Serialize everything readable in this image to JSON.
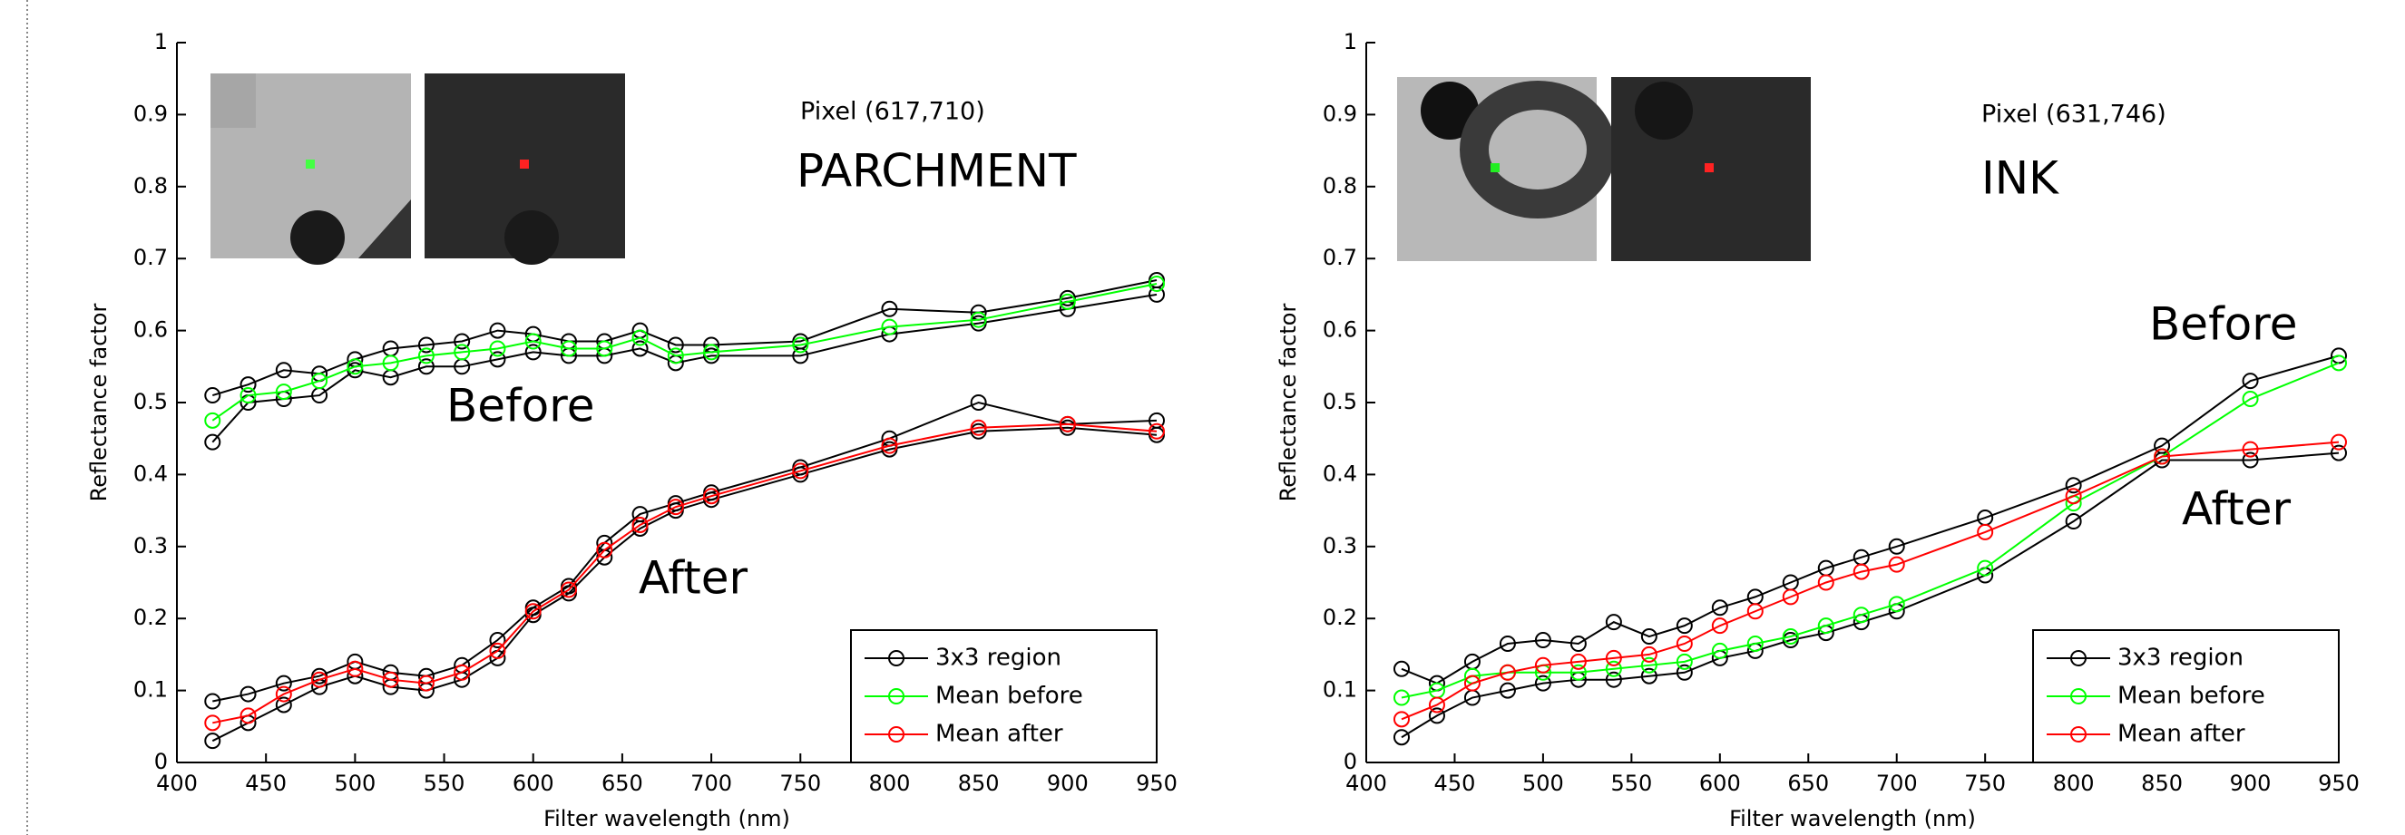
{
  "chart_data": [
    {
      "type": "line",
      "title": null,
      "ylabel": "Reflectance factor",
      "xlabel": "Filter wavelength (nm)",
      "pixel_label": "Pixel (617,710)",
      "region_label": "PARCHMENT",
      "before_label": "Before",
      "after_label": "After",
      "x": [
        420,
        440,
        460,
        480,
        500,
        520,
        540,
        560,
        580,
        600,
        620,
        640,
        660,
        680,
        700,
        750,
        800,
        850,
        900,
        950
      ],
      "xlim": [
        400,
        950
      ],
      "xticks": [
        400,
        450,
        500,
        550,
        600,
        650,
        700,
        750,
        800,
        850,
        900,
        950
      ],
      "ylim": [
        0,
        1
      ],
      "yticks": [
        0,
        0.1,
        0.2,
        0.3,
        0.4,
        0.5,
        0.6,
        0.7,
        0.8,
        0.9,
        1
      ],
      "legend": "lower right",
      "series": [
        {
          "name": "3x3 region",
          "color": "#000000",
          "values": [
            0.51,
            0.525,
            0.545,
            0.54,
            0.56,
            0.575,
            0.58,
            0.585,
            0.6,
            0.595,
            0.585,
            0.585,
            0.6,
            0.58,
            0.58,
            0.585,
            0.63,
            0.625,
            0.645,
            0.67
          ]
        },
        {
          "name": "3x3 region",
          "color": "#000000",
          "values": [
            0.445,
            0.5,
            0.505,
            0.51,
            0.545,
            0.535,
            0.55,
            0.55,
            0.56,
            0.57,
            0.565,
            0.565,
            0.575,
            0.555,
            0.565,
            0.565,
            0.595,
            0.61,
            0.63,
            0.65
          ]
        },
        {
          "name": "3x3 region",
          "color": "#000000",
          "values": [
            0.085,
            0.095,
            0.11,
            0.12,
            0.14,
            0.125,
            0.12,
            0.135,
            0.17,
            0.215,
            0.245,
            0.305,
            0.345,
            0.36,
            0.375,
            0.41,
            0.45,
            0.5,
            0.47,
            0.475
          ]
        },
        {
          "name": "3x3 region",
          "color": "#000000",
          "values": [
            0.03,
            0.055,
            0.08,
            0.105,
            0.12,
            0.105,
            0.1,
            0.115,
            0.145,
            0.205,
            0.235,
            0.285,
            0.325,
            0.35,
            0.365,
            0.4,
            0.435,
            0.46,
            0.465,
            0.455
          ]
        },
        {
          "name": "Mean before",
          "color": "#00ff00",
          "values": [
            0.475,
            0.51,
            0.515,
            0.53,
            0.55,
            0.555,
            0.565,
            0.57,
            0.575,
            0.585,
            0.575,
            0.575,
            0.59,
            0.565,
            0.57,
            0.58,
            0.605,
            0.615,
            0.64,
            0.665
          ]
        },
        {
          "name": "Mean after",
          "color": "#ff0000",
          "values": [
            0.055,
            0.065,
            0.095,
            0.115,
            0.13,
            0.115,
            0.11,
            0.125,
            0.155,
            0.21,
            0.24,
            0.295,
            0.33,
            0.355,
            0.37,
            0.405,
            0.44,
            0.465,
            0.47,
            0.46
          ]
        }
      ]
    },
    {
      "type": "line",
      "title": null,
      "ylabel": "Reflectance factor",
      "xlabel": "Filter wavelength (nm)",
      "pixel_label": "Pixel (631,746)",
      "region_label": "INK",
      "before_label": "Before",
      "after_label": "After",
      "x": [
        420,
        440,
        460,
        480,
        500,
        520,
        540,
        560,
        580,
        600,
        620,
        640,
        660,
        680,
        700,
        750,
        800,
        850,
        900,
        950
      ],
      "xlim": [
        400,
        950
      ],
      "xticks": [
        400,
        450,
        500,
        550,
        600,
        650,
        700,
        750,
        800,
        850,
        900,
        950
      ],
      "ylim": [
        0,
        1
      ],
      "yticks": [
        0,
        0.1,
        0.2,
        0.3,
        0.4,
        0.5,
        0.6,
        0.7,
        0.8,
        0.9,
        1
      ],
      "legend": "lower right",
      "series": [
        {
          "name": "3x3 region",
          "color": "#000000",
          "values": [
            0.13,
            0.11,
            0.14,
            0.165,
            0.17,
            0.165,
            0.195,
            0.175,
            0.19,
            0.215,
            0.23,
            0.25,
            0.27,
            0.285,
            0.3,
            0.34,
            0.385,
            0.44,
            0.53,
            0.565
          ]
        },
        {
          "name": "3x3 region",
          "color": "#000000",
          "values": [
            0.035,
            0.065,
            0.09,
            0.1,
            0.11,
            0.115,
            0.115,
            0.12,
            0.125,
            0.145,
            0.155,
            0.17,
            0.18,
            0.195,
            0.21,
            0.26,
            0.335,
            0.42,
            0.42,
            0.43
          ]
        },
        {
          "name": "Mean before",
          "color": "#00ff00",
          "values": [
            0.09,
            0.1,
            0.12,
            0.125,
            0.125,
            0.125,
            0.13,
            0.135,
            0.14,
            0.155,
            0.165,
            0.175,
            0.19,
            0.205,
            0.22,
            0.27,
            0.36,
            0.425,
            0.505,
            0.555
          ]
        },
        {
          "name": "Mean after",
          "color": "#ff0000",
          "values": [
            0.06,
            0.08,
            0.11,
            0.125,
            0.135,
            0.14,
            0.145,
            0.15,
            0.165,
            0.19,
            0.21,
            0.23,
            0.25,
            0.265,
            0.275,
            0.32,
            0.37,
            0.425,
            0.435,
            0.445
          ]
        }
      ]
    }
  ]
}
